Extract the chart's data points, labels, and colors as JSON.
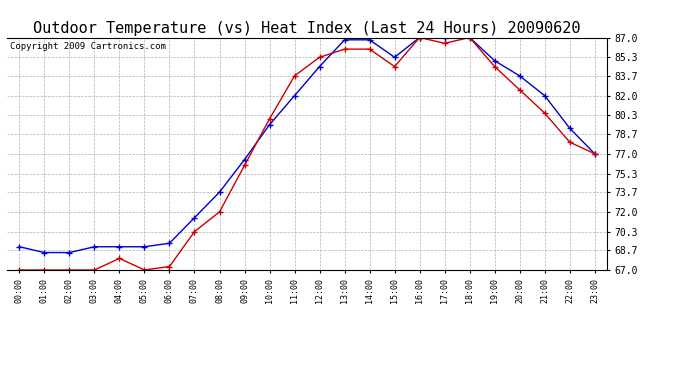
{
  "title": "Outdoor Temperature (vs) Heat Index (Last 24 Hours) 20090620",
  "copyright": "Copyright 2009 Cartronics.com",
  "x_labels": [
    "00:00",
    "01:00",
    "02:00",
    "03:00",
    "04:00",
    "05:00",
    "06:00",
    "07:00",
    "08:00",
    "09:00",
    "10:00",
    "11:00",
    "12:00",
    "13:00",
    "14:00",
    "15:00",
    "16:00",
    "17:00",
    "18:00",
    "19:00",
    "20:00",
    "21:00",
    "22:00",
    "23:00"
  ],
  "y_ticks": [
    67.0,
    68.7,
    70.3,
    72.0,
    73.7,
    75.3,
    77.0,
    78.7,
    80.3,
    82.0,
    83.7,
    85.3,
    87.0
  ],
  "ylim": [
    67.0,
    87.0
  ],
  "blue_line": [
    69.0,
    68.5,
    68.5,
    69.0,
    69.0,
    69.0,
    69.3,
    71.5,
    73.7,
    76.5,
    79.5,
    82.0,
    84.5,
    86.8,
    86.8,
    85.3,
    87.0,
    87.0,
    87.0,
    85.0,
    83.7,
    82.0,
    79.2,
    77.0
  ],
  "red_line": [
    67.0,
    67.0,
    67.0,
    67.0,
    68.0,
    67.0,
    67.3,
    70.3,
    72.0,
    76.0,
    80.0,
    83.7,
    85.3,
    86.0,
    86.0,
    84.5,
    87.0,
    86.5,
    87.0,
    84.5,
    82.5,
    80.5,
    78.0,
    77.0
  ],
  "blue_color": "#0000cc",
  "red_color": "#cc0000",
  "bg_color": "#ffffff",
  "plot_bg_color": "#ffffff",
  "grid_color": "#aaaaaa",
  "title_color": "#000000",
  "title_fontsize": 11,
  "copyright_fontsize": 6.5,
  "marker_size": 4,
  "linewidth": 1.0
}
